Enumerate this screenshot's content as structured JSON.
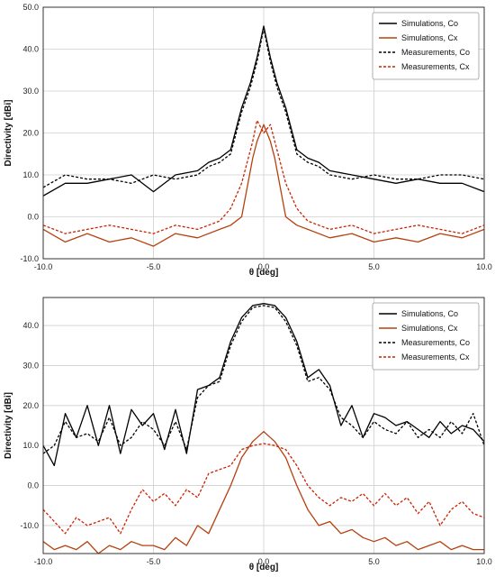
{
  "chart_data": [
    {
      "type": "line",
      "xlabel": "θ [deg]",
      "ylabel": "Directivity [dBi]",
      "xlim": [
        -10,
        10
      ],
      "ylim": [
        -10,
        50
      ],
      "xticks": [
        -10,
        -5,
        0,
        5,
        10
      ],
      "xtick_labels": [
        "-10.0",
        "-5.0",
        "0.0",
        "5.0",
        "10.0"
      ],
      "yticks": [
        -10,
        0,
        10,
        20,
        30,
        40,
        50
      ],
      "ytick_labels": [
        "-10.0",
        "0.0",
        "10.0",
        "20.0",
        "30.0",
        "40.0",
        "50.0"
      ],
      "grid": true,
      "legend_position": "top-right",
      "series": [
        {
          "name": "Simulations, Co",
          "color": "#000000",
          "style": "solid",
          "x": [
            -10,
            -9,
            -8,
            -7,
            -6,
            -5,
            -4,
            -3,
            -2.5,
            -2,
            -1.5,
            -1,
            -0.6,
            -0.3,
            0,
            0.3,
            0.6,
            1,
            1.5,
            2,
            2.5,
            3,
            4,
            5,
            6,
            7,
            8,
            9,
            10
          ],
          "y": [
            5,
            8,
            8,
            9,
            10,
            6,
            10,
            11,
            13,
            14,
            16,
            26,
            32,
            38,
            45.5,
            38,
            32,
            26,
            16,
            14,
            13,
            11,
            10,
            9,
            8,
            9,
            8,
            8,
            6
          ]
        },
        {
          "name": "Simulations, Cx",
          "color": "#b5410f",
          "style": "solid",
          "x": [
            -10,
            -9,
            -8,
            -7,
            -6,
            -5,
            -4,
            -3,
            -2,
            -1.5,
            -1,
            -0.5,
            -0.3,
            0,
            0.3,
            0.5,
            1,
            1.5,
            2,
            3,
            4,
            5,
            6,
            7,
            8,
            9,
            10
          ],
          "y": [
            -3,
            -6,
            -4,
            -6,
            -5,
            -7,
            -4,
            -5,
            -3,
            -2,
            0,
            14,
            18,
            22,
            18,
            14,
            0,
            -2,
            -3,
            -5,
            -4,
            -6,
            -5,
            -6,
            -4,
            -5,
            -3
          ]
        },
        {
          "name": "Measurements, Co",
          "color": "#000000",
          "style": "dashed",
          "x": [
            -10,
            -9,
            -8,
            -7,
            -6,
            -5,
            -4,
            -3,
            -2.5,
            -2,
            -1.5,
            -1,
            -0.6,
            -0.3,
            0,
            0.3,
            0.6,
            1,
            1.5,
            2,
            2.5,
            3,
            4,
            5,
            6,
            7,
            8,
            9,
            10
          ],
          "y": [
            7,
            10,
            9,
            9,
            8,
            10,
            9,
            10,
            12,
            13,
            15,
            25,
            31,
            37,
            45,
            37,
            31,
            25,
            15,
            13,
            12,
            10,
            9,
            10,
            9,
            9,
            10,
            10,
            9
          ]
        },
        {
          "name": "Measurements, Cx",
          "color": "#cc2200",
          "style": "dashed",
          "x": [
            -10,
            -9,
            -8,
            -7,
            -6,
            -5,
            -4,
            -3,
            -2,
            -1.5,
            -1,
            -0.5,
            -0.3,
            0,
            0.3,
            0.5,
            1,
            1.5,
            2,
            3,
            4,
            5,
            6,
            7,
            8,
            9,
            10
          ],
          "y": [
            -2,
            -4,
            -3,
            -2,
            -3,
            -4,
            -2,
            -3,
            -1,
            2,
            8,
            18,
            23,
            20,
            22,
            18,
            8,
            2,
            -1,
            -3,
            -2,
            -4,
            -3,
            -2,
            -3,
            -4,
            -2
          ]
        }
      ]
    },
    {
      "type": "line",
      "xlabel": "θ [deg]",
      "ylabel": "Directivity [dBi]",
      "xlim": [
        -10,
        10
      ],
      "ylim": [
        -17,
        47
      ],
      "xticks": [
        -10,
        -5,
        0,
        5,
        10
      ],
      "xtick_labels": [
        "-10.0",
        "-5.0",
        "0.0",
        "5.0",
        "10.0"
      ],
      "yticks": [
        -10,
        0,
        10,
        20,
        30,
        40
      ],
      "ytick_labels": [
        "-10.0",
        "0.0",
        "10.0",
        "20.0",
        "30.0",
        "40.0"
      ],
      "grid": true,
      "legend_position": "top-right",
      "series": [
        {
          "name": "Simulations, Co",
          "color": "#000000",
          "style": "solid",
          "x": [
            -10,
            -9.5,
            -9,
            -8.5,
            -8,
            -7.5,
            -7,
            -6.5,
            -6,
            -5.5,
            -5,
            -4.5,
            -4,
            -3.5,
            -3,
            -2.5,
            -2,
            -1.5,
            -1,
            -0.5,
            0,
            0.5,
            1,
            1.5,
            2,
            2.5,
            3,
            3.5,
            4,
            4.5,
            5,
            5.5,
            6,
            6.5,
            7,
            7.5,
            8,
            8.5,
            9,
            9.5,
            10
          ],
          "y": [
            10,
            5,
            18,
            12,
            20,
            10,
            20,
            8,
            19,
            15,
            18,
            9,
            19,
            8,
            24,
            25,
            27,
            36,
            42,
            45,
            45.5,
            45,
            42,
            36,
            27,
            29,
            25,
            15,
            20,
            12,
            18,
            17,
            15,
            16,
            14,
            12,
            16,
            13,
            15,
            14,
            11
          ]
        },
        {
          "name": "Simulations, Cx",
          "color": "#b5410f",
          "style": "solid",
          "x": [
            -10,
            -9.5,
            -9,
            -8.5,
            -8,
            -7.5,
            -7,
            -6.5,
            -6,
            -5.5,
            -5,
            -4.5,
            -4,
            -3.5,
            -3,
            -2.5,
            -2,
            -1.5,
            -1,
            -0.5,
            0,
            0.5,
            1,
            1.5,
            2,
            2.5,
            3,
            3.5,
            4,
            4.5,
            5,
            5.5,
            6,
            6.5,
            7,
            7.5,
            8,
            8.5,
            9,
            9.5,
            10
          ],
          "y": [
            -14,
            -16,
            -15,
            -16,
            -14,
            -17,
            -15,
            -16,
            -14,
            -15,
            -15,
            -16,
            -13,
            -15,
            -10,
            -12,
            -6,
            0,
            7,
            11,
            13.5,
            11,
            7,
            0,
            -6,
            -10,
            -9,
            -12,
            -11,
            -13,
            -14,
            -13,
            -15,
            -14,
            -16,
            -15,
            -14,
            -16,
            -15,
            -16,
            -16
          ]
        },
        {
          "name": "Measurements, Co",
          "color": "#000000",
          "style": "dashed",
          "x": [
            -10,
            -9.5,
            -9,
            -8.5,
            -8,
            -7.5,
            -7,
            -6.5,
            -6,
            -5.5,
            -5,
            -4.5,
            -4,
            -3.5,
            -3,
            -2.5,
            -2,
            -1.5,
            -1,
            -0.5,
            0,
            0.5,
            1,
            1.5,
            2,
            2.5,
            3,
            3.5,
            4,
            4.5,
            5,
            5.5,
            6,
            6.5,
            7,
            7.5,
            8,
            8.5,
            9,
            9.5,
            10
          ],
          "y": [
            8,
            10,
            16,
            12,
            13,
            11,
            17,
            10,
            12,
            16,
            14,
            10,
            16,
            9,
            22,
            25,
            26,
            35,
            41,
            44.5,
            45,
            44.5,
            41,
            35,
            26,
            27,
            24,
            17,
            15,
            12,
            16,
            14,
            13,
            16,
            12,
            14,
            12,
            16,
            13,
            18,
            10
          ]
        },
        {
          "name": "Measurements, Cx",
          "color": "#cc2200",
          "style": "dashed",
          "x": [
            -10,
            -9.5,
            -9,
            -8.5,
            -8,
            -7.5,
            -7,
            -6.5,
            -6,
            -5.5,
            -5,
            -4.5,
            -4,
            -3.5,
            -3,
            -2.5,
            -2,
            -1.5,
            -1,
            -0.5,
            0,
            0.5,
            1,
            1.5,
            2,
            2.5,
            3,
            3.5,
            4,
            4.5,
            5,
            5.5,
            6,
            6.5,
            7,
            7.5,
            8,
            8.5,
            9,
            9.5,
            10
          ],
          "y": [
            -6,
            -9,
            -12,
            -8,
            -10,
            -9,
            -8,
            -12,
            -6,
            -1,
            -4,
            -2,
            -5,
            -1,
            -3,
            3,
            4,
            5,
            9,
            10,
            10.5,
            10,
            9,
            5,
            0,
            -3,
            -5,
            -3,
            -4,
            -2,
            -5,
            -2,
            -5,
            -3,
            -7,
            -4,
            -10,
            -6,
            -4,
            -7,
            -8
          ]
        }
      ]
    }
  ]
}
